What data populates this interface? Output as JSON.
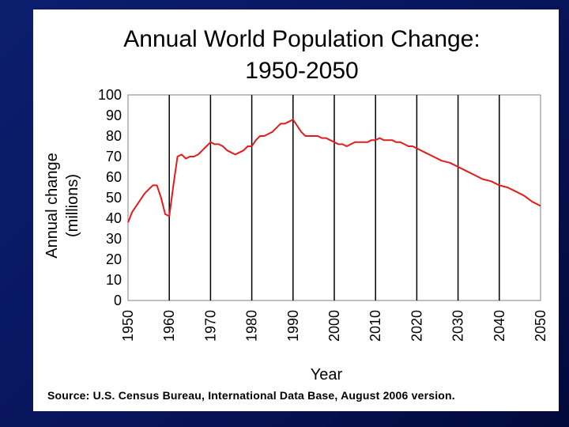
{
  "chart_data": {
    "type": "line",
    "title": "Annual World Population Change:",
    "title_line2": "1950-2050",
    "xlabel": "Year",
    "ylabel": "Annual change",
    "ylabel_line2": "(millions)",
    "xlim": [
      1950,
      2050
    ],
    "ylim": [
      0,
      100
    ],
    "x_ticks": [
      1950,
      1960,
      1970,
      1980,
      1990,
      2000,
      2010,
      2020,
      2030,
      2040,
      2050
    ],
    "x_tick_labels": [
      "1950",
      "1960",
      "1970",
      "1980",
      "1990",
      "2000",
      "2010",
      "2020",
      "2030",
      "2040",
      "2050"
    ],
    "y_ticks": [
      0,
      10,
      20,
      30,
      40,
      50,
      60,
      70,
      80,
      90,
      100
    ],
    "y_tick_labels": [
      "0",
      "10",
      "20",
      "30",
      "40",
      "50",
      "60",
      "70",
      "80",
      "90",
      "100"
    ],
    "grid": "vertical",
    "series": [
      {
        "name": "Annual change",
        "color": "#e31b1b",
        "x": [
          1950,
          1951,
          1952,
          1953,
          1954,
          1955,
          1956,
          1957,
          1958,
          1959,
          1960,
          1961,
          1962,
          1963,
          1964,
          1965,
          1966,
          1967,
          1968,
          1969,
          1970,
          1971,
          1972,
          1973,
          1974,
          1975,
          1976,
          1977,
          1978,
          1979,
          1980,
          1981,
          1982,
          1983,
          1984,
          1985,
          1986,
          1987,
          1988,
          1989,
          1990,
          1991,
          1992,
          1993,
          1994,
          1995,
          1996,
          1997,
          1998,
          1999,
          2000,
          2001,
          2002,
          2003,
          2004,
          2005,
          2006,
          2007,
          2008,
          2009,
          2010,
          2011,
          2012,
          2013,
          2014,
          2015,
          2016,
          2017,
          2018,
          2019,
          2020,
          2022,
          2024,
          2026,
          2028,
          2030,
          2032,
          2034,
          2036,
          2038,
          2040,
          2042,
          2044,
          2046,
          2048,
          2050
        ],
        "values": [
          38,
          43,
          46,
          49,
          52,
          54,
          56,
          56,
          50,
          42,
          41,
          56,
          70,
          71,
          69,
          70,
          70,
          71,
          73,
          75,
          77,
          76,
          76,
          75,
          73,
          72,
          71,
          72,
          73,
          75,
          75,
          78,
          80,
          80,
          81,
          82,
          84,
          86,
          86,
          87,
          88,
          85,
          82,
          80,
          80,
          80,
          80,
          79,
          79,
          78,
          77,
          76,
          76,
          75,
          76,
          77,
          77,
          77,
          77,
          78,
          78,
          79,
          78,
          78,
          78,
          77,
          77,
          76,
          75,
          75,
          74,
          72,
          70,
          68,
          67,
          65,
          63,
          61,
          59,
          58,
          56,
          55,
          53,
          51,
          48,
          46
        ]
      }
    ]
  },
  "source_note": "Source: U.S. Census Bureau, International Data Base, August 2006 version."
}
